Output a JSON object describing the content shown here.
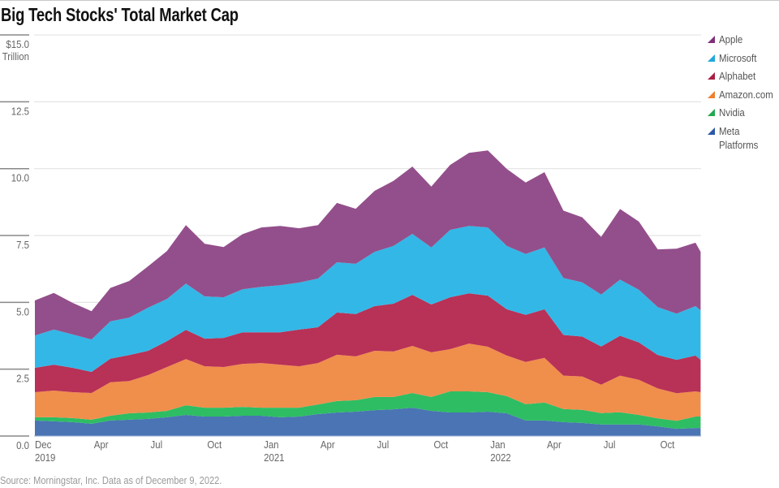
{
  "chart_data": {
    "type": "area",
    "stacked": true,
    "title": "Big Tech Stocks' Total Market Cap",
    "ylabel": "$ Trillion",
    "y_unit_label": "Trillion",
    "ylim": [
      0,
      15
    ],
    "grid": true,
    "legend_position": "right",
    "y_ticks": [
      {
        "value": 15.0,
        "label": "$15.0"
      },
      {
        "value": 12.5,
        "label": "12.5"
      },
      {
        "value": 10.0,
        "label": "10.0"
      },
      {
        "value": 7.5,
        "label": "7.5"
      },
      {
        "value": 5.0,
        "label": "5.0"
      },
      {
        "value": 2.5,
        "label": "2.5"
      },
      {
        "value": 0.0,
        "label": "0.0"
      }
    ],
    "x_ticks": [
      {
        "pos": 0,
        "label": "Dec",
        "year": "2019"
      },
      {
        "pos": 3,
        "label": "Apr"
      },
      {
        "pos": 6,
        "label": "Jul"
      },
      {
        "pos": 9,
        "label": "Oct"
      },
      {
        "pos": 12,
        "label": "Jan",
        "year": "2021"
      },
      {
        "pos": 15,
        "label": "Apr"
      },
      {
        "pos": 18,
        "label": "Jul"
      },
      {
        "pos": 21,
        "label": "Oct"
      },
      {
        "pos": 24,
        "label": "Jan",
        "year": "2022"
      },
      {
        "pos": 27,
        "label": "Apr"
      },
      {
        "pos": 30,
        "label": "Jul"
      },
      {
        "pos": 33,
        "label": "Oct"
      }
    ],
    "x": [
      "2019-12",
      "2020-01",
      "2020-02",
      "2020-03",
      "2020-04",
      "2020-05",
      "2020-06",
      "2020-07",
      "2020-08",
      "2020-09",
      "2020-10",
      "2020-11",
      "2020-12",
      "2021-01",
      "2021-02",
      "2021-03",
      "2021-04",
      "2021-05",
      "2021-06",
      "2021-07",
      "2021-08",
      "2021-09",
      "2021-10",
      "2021-11",
      "2021-12",
      "2022-01",
      "2022-02",
      "2022-03",
      "2022-04",
      "2022-05",
      "2022-06",
      "2022-07",
      "2022-08",
      "2022-09",
      "2022-10",
      "2022-11",
      "2022-12-09"
    ],
    "x_index": [
      0,
      1,
      2,
      3,
      4,
      5,
      6,
      7,
      8,
      9,
      10,
      11,
      12,
      13,
      14,
      15,
      16,
      17,
      18,
      19,
      20,
      21,
      22,
      23,
      24,
      25,
      26,
      27,
      28,
      29,
      30,
      31,
      32,
      33,
      34,
      35,
      35.27
    ],
    "series": [
      {
        "name": "Meta Platforms",
        "color": "#4a74b3",
        "legend_color": "#2b58a6",
        "values": [
          0.58,
          0.55,
          0.52,
          0.46,
          0.58,
          0.61,
          0.64,
          0.7,
          0.79,
          0.73,
          0.73,
          0.76,
          0.76,
          0.7,
          0.73,
          0.82,
          0.88,
          0.91,
          0.97,
          1.0,
          1.06,
          0.94,
          0.88,
          0.88,
          0.91,
          0.85,
          0.58,
          0.58,
          0.52,
          0.49,
          0.43,
          0.43,
          0.43,
          0.36,
          0.27,
          0.3,
          0.3
        ]
      },
      {
        "name": "Nvidia",
        "color": "#2ebd63",
        "legend_color": "#22a84f",
        "values": [
          0.12,
          0.15,
          0.15,
          0.15,
          0.18,
          0.24,
          0.24,
          0.24,
          0.36,
          0.33,
          0.33,
          0.33,
          0.3,
          0.36,
          0.33,
          0.36,
          0.43,
          0.43,
          0.49,
          0.46,
          0.55,
          0.52,
          0.79,
          0.79,
          0.73,
          0.64,
          0.61,
          0.67,
          0.49,
          0.49,
          0.43,
          0.46,
          0.36,
          0.3,
          0.3,
          0.43,
          0.43
        ]
      },
      {
        "name": "Amazon.com",
        "color": "#f08e4c",
        "legend_color": "#ee7f2d",
        "values": [
          0.94,
          1.0,
          0.97,
          1.0,
          1.25,
          1.21,
          1.4,
          1.64,
          1.73,
          1.55,
          1.52,
          1.61,
          1.67,
          1.61,
          1.55,
          1.55,
          1.73,
          1.64,
          1.73,
          1.7,
          1.76,
          1.67,
          1.58,
          1.79,
          1.7,
          1.52,
          1.58,
          1.67,
          1.25,
          1.25,
          1.06,
          1.37,
          1.31,
          1.12,
          1.03,
          0.94,
          0.91
        ]
      },
      {
        "name": "Alphabet",
        "color": "#b83157",
        "legend_color": "#a91f45",
        "values": [
          0.91,
          0.97,
          0.91,
          0.79,
          0.88,
          0.97,
          0.91,
          0.97,
          1.09,
          1.03,
          1.09,
          1.18,
          1.15,
          1.21,
          1.37,
          1.34,
          1.58,
          1.58,
          1.67,
          1.79,
          1.91,
          1.79,
          1.94,
          1.88,
          1.91,
          1.73,
          1.76,
          1.82,
          1.52,
          1.49,
          1.43,
          1.49,
          1.4,
          1.25,
          1.25,
          1.34,
          1.21
        ]
      },
      {
        "name": "Microsoft",
        "color": "#33b7e6",
        "legend_color": "#1fa7dc",
        "values": [
          1.21,
          1.31,
          1.25,
          1.21,
          1.4,
          1.4,
          1.61,
          1.58,
          1.73,
          1.58,
          1.52,
          1.61,
          1.7,
          1.76,
          1.76,
          1.82,
          1.88,
          1.88,
          2.03,
          2.16,
          2.28,
          2.13,
          2.52,
          2.52,
          2.55,
          2.37,
          2.28,
          2.31,
          2.13,
          2.03,
          1.94,
          2.1,
          1.97,
          1.79,
          1.73,
          1.85,
          1.85
        ]
      },
      {
        "name": "Apple",
        "color": "#934f8b",
        "legend_color": "#7f2f79",
        "values": [
          1.31,
          1.37,
          1.18,
          1.06,
          1.25,
          1.37,
          1.55,
          1.79,
          2.19,
          1.97,
          1.88,
          2.06,
          2.22,
          2.22,
          2.03,
          2.0,
          2.22,
          2.06,
          2.28,
          2.43,
          2.52,
          2.28,
          2.43,
          2.73,
          2.88,
          2.88,
          2.67,
          2.82,
          2.52,
          2.43,
          2.16,
          2.64,
          2.55,
          2.16,
          2.43,
          2.37,
          2.19
        ]
      }
    ],
    "legend_order": [
      "Apple",
      "Microsoft",
      "Alphabet",
      "Amazon.com",
      "Nvidia",
      "Meta Platforms"
    ]
  },
  "legend": [
    "Apple",
    "Microsoft",
    "Alphabet",
    "Amazon.com",
    "Nvidia",
    "Meta Platforms"
  ],
  "source": "Source: Morningstar, Inc. Data as of December 9, 2022."
}
